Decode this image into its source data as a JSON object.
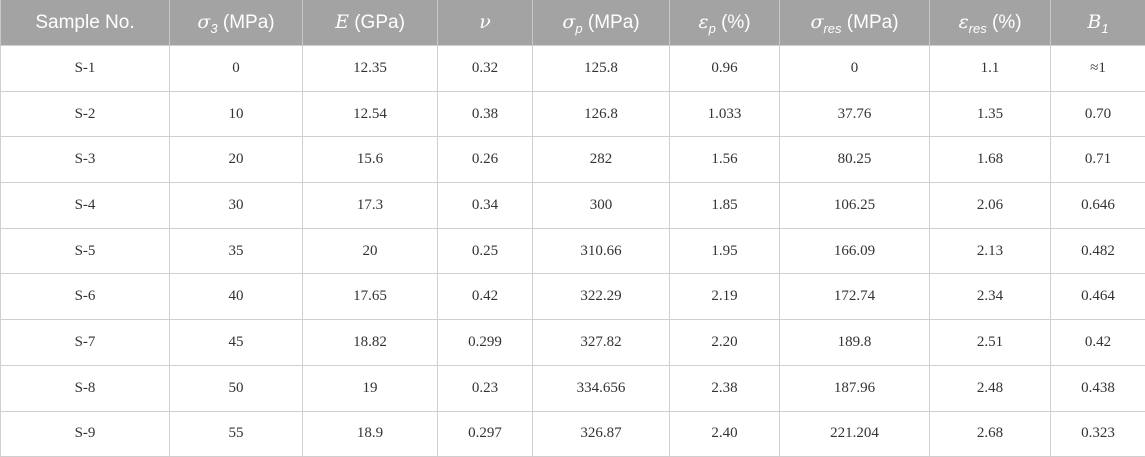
{
  "table": {
    "headers": [
      {
        "pre": "Sample No.",
        "sym": "",
        "sub": "",
        "post": ""
      },
      {
        "pre": "",
        "sym": "σ",
        "sub": "3",
        "post": " (MPa)"
      },
      {
        "pre": "",
        "sym": "E",
        "sub": "",
        "post": " (GPa)"
      },
      {
        "pre": "",
        "sym": "ν",
        "sub": "",
        "post": ""
      },
      {
        "pre": "",
        "sym": "σ",
        "sub": "p",
        "post": " (MPa)"
      },
      {
        "pre": "",
        "sym": "ε",
        "sub": "p",
        "post": " (%)"
      },
      {
        "pre": "",
        "sym": "σ",
        "sub": "res",
        "post": " (MPa)"
      },
      {
        "pre": "",
        "sym": "ε",
        "sub": "res",
        "post": " (%)"
      },
      {
        "pre": "",
        "sym": "B",
        "sub": "1",
        "post": ""
      }
    ],
    "rows": [
      [
        "S-1",
        "0",
        "12.35",
        "0.32",
        "125.8",
        "0.96",
        "0",
        "1.1",
        "≈1"
      ],
      [
        "S-2",
        "10",
        "12.54",
        "0.38",
        "126.8",
        "1.033",
        "37.76",
        "1.35",
        "0.70"
      ],
      [
        "S-3",
        "20",
        "15.6",
        "0.26",
        "282",
        "1.56",
        "80.25",
        "1.68",
        "0.71"
      ],
      [
        "S-4",
        "30",
        "17.3",
        "0.34",
        "300",
        "1.85",
        "106.25",
        "2.06",
        "0.646"
      ],
      [
        "S-5",
        "35",
        "20",
        "0.25",
        "310.66",
        "1.95",
        "166.09",
        "2.13",
        "0.482"
      ],
      [
        "S-6",
        "40",
        "17.65",
        "0.42",
        "322.29",
        "2.19",
        "172.74",
        "2.34",
        "0.464"
      ],
      [
        "S-7",
        "45",
        "18.82",
        "0.299",
        "327.82",
        "2.20",
        "189.8",
        "2.51",
        "0.42"
      ],
      [
        "S-8",
        "50",
        "19",
        "0.23",
        "334.656",
        "2.38",
        "187.96",
        "2.48",
        "0.438"
      ],
      [
        "S-9",
        "55",
        "18.9",
        "0.297",
        "326.87",
        "2.40",
        "221.204",
        "2.68",
        "0.323"
      ]
    ]
  }
}
